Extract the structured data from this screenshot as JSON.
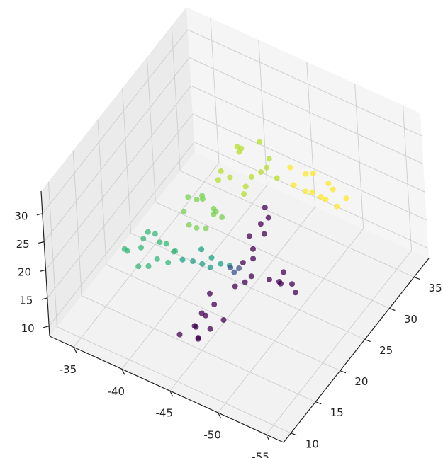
{
  "chart_data": {
    "type": "scatter3d",
    "xlim": [
      -32.5,
      -56.8
    ],
    "ylim": [
      8.5,
      38
    ],
    "zlim": [
      8.2,
      34
    ],
    "xticks": [
      -35,
      -40,
      -45,
      -50,
      -55
    ],
    "yticks": [
      10,
      15,
      20,
      25,
      30,
      35
    ],
    "zticks": [
      10,
      15,
      20,
      25,
      30
    ],
    "grid": true,
    "series": [
      {
        "color": "#fde725",
        "x": [
          -47.2,
          -48.0,
          -48.6,
          -49.1,
          -49.5,
          -50.0,
          -50.4,
          -50.9,
          -51.3,
          -51.8,
          -52.4,
          -53.0
        ],
        "y": [
          29.8,
          28.9,
          30.2,
          29.1,
          30.0,
          28.7,
          29.6,
          30.3,
          28.9,
          29.5,
          29.0,
          29.8
        ],
        "z": [
          26,
          24.5,
          25.5,
          24,
          26.5,
          25,
          23.5,
          25.5,
          24.5,
          26,
          24,
          25
        ]
      },
      {
        "color": "#b5de2b",
        "x": [
          -42.5,
          -43.4,
          -44.1,
          -45.0,
          -45.8,
          -46.7,
          -43.0,
          -44.6,
          -46.0,
          -47.2,
          -44.0,
          -45.5,
          -42.8,
          -46.5
        ],
        "y": [
          25.0,
          27.5,
          23.8,
          26.3,
          28.4,
          25.1,
          23.5,
          28.9,
          22.9,
          27.2,
          26.0,
          24.2,
          27.8,
          26.6
        ],
        "z": [
          27,
          29,
          28.5,
          26.5,
          28,
          30,
          27.5,
          29.5,
          28,
          27,
          30.5,
          27.5,
          28.5,
          29
        ]
      },
      {
        "color": "#7ad151",
        "x": [
          -41.0,
          -41.8,
          -42.6,
          -43.3,
          -44.0,
          -41.5,
          -42.9,
          -43.7,
          -40.8,
          -42.2,
          -43.9,
          -42.0
        ],
        "y": [
          20.2,
          22.4,
          19.6,
          21.8,
          20.5,
          23.0,
          22.9,
          19.4,
          21.5,
          18.9,
          22.2,
          21.0
        ],
        "z": [
          24,
          25,
          23,
          24.5,
          25.5,
          23.5,
          22.5,
          24,
          25,
          24,
          23,
          26
        ]
      },
      {
        "color": "#35b779",
        "x": [
          -37.6,
          -38.4,
          -39.2,
          -40.1,
          -40.9,
          -41.6,
          -38.0,
          -39.6,
          -40.5,
          -37.9,
          -41.2,
          -39.0,
          -40.0,
          -38.7
        ],
        "y": [
          15.1,
          17.8,
          14.2,
          16.9,
          18.3,
          15.6,
          13.9,
          19.0,
          13.8,
          17.2,
          17.5,
          15.8,
          16.4,
          18.6
        ],
        "z": [
          20,
          21,
          19.5,
          21.5,
          19,
          20.5,
          22,
          18.5,
          21,
          18.5,
          20,
          22.5,
          19,
          20
        ]
      },
      {
        "color": "#1fa187",
        "x": [
          -41.8,
          -42.5,
          -43.2,
          -43.9,
          -44.6,
          -45.2,
          -42.8,
          -44.2
        ],
        "y": [
          18.0,
          18.7,
          19.2,
          19.8,
          20.2,
          20.8,
          19.9,
          18.9
        ],
        "z": [
          18.5,
          18,
          17.5,
          18.5,
          17.5,
          17,
          19,
          18
        ]
      },
      {
        "color": "#3b528b",
        "x": [
          -45.4,
          -45.9,
          -45.6
        ],
        "y": [
          20.6,
          21.3,
          20.9
        ],
        "z": [
          17,
          16.5,
          16
        ]
      },
      {
        "color": "#440154",
        "x": [
          -45.5,
          -46.2,
          -45.8,
          -46.5,
          -45.3,
          -46.0,
          -46.4,
          -45.7,
          -46.3,
          -45.6,
          -46.8,
          -48.0,
          -48.7,
          -49.3,
          -50.0,
          -50.6,
          -49.0,
          -43.0,
          -44.5,
          -43.8,
          -45.0,
          -44.2,
          -43.4,
          -45.3,
          -44.0,
          -43.2,
          -44.8,
          -43.6
        ],
        "y": [
          27.6,
          26.9,
          26.1,
          25.4,
          24.7,
          24.0,
          23.2,
          22.5,
          21.6,
          20.9,
          22.0,
          23.2,
          23.8,
          23.0,
          23.9,
          23.4,
          24.2,
          14.5,
          15.3,
          16.0,
          16.8,
          17.5,
          18.2,
          18.9,
          19.6,
          20.3,
          14.8,
          16.6
        ],
        "z": [
          20,
          19.5,
          19,
          18.5,
          18,
          17,
          16.5,
          16,
          14,
          13.5,
          15,
          14,
          13.5,
          14.5,
          14,
          13.5,
          15,
          10,
          9.5,
          10.5,
          10,
          11,
          10,
          9.5,
          10.5,
          11,
          10.5,
          9.5
        ]
      }
    ]
  }
}
